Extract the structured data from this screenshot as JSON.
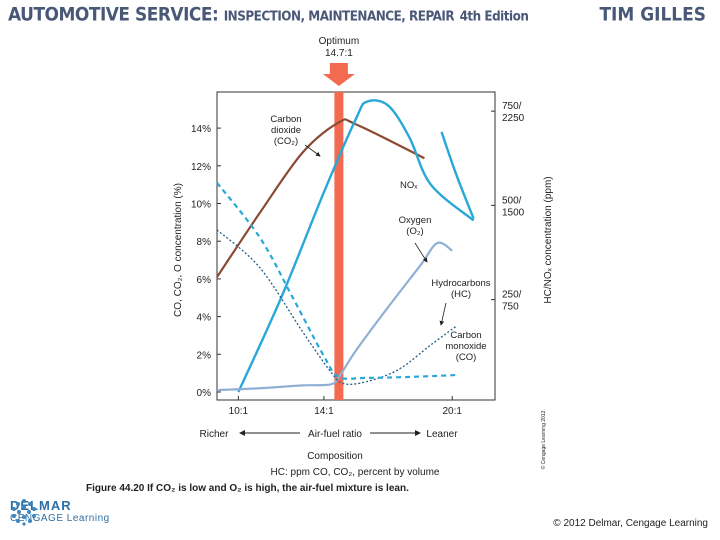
{
  "header": {
    "title_main": "AUTOMOTIVE SERVICE:",
    "title_sub": "INSPECTION, MAINTENANCE, REPAIR",
    "edition": "4th Edition",
    "author": "TIM GILLES"
  },
  "figure": {
    "caption": "Figure 44.20 If CO₂ is low and O₂ is high, the air-fuel mixture is lean.",
    "side_credit": "© Cengage Learning 2012",
    "copyright": "© 2012 Delmar, Cengage Learning",
    "logo_line1": "DELMAR",
    "logo_line2": "CENGAGE Learning"
  },
  "colors": {
    "co2": "#8b4a32",
    "nox": "#29a8d8",
    "o2": "#29a8d8",
    "hc": "#8fb0d4",
    "co": "#1f5f8a",
    "optimum_bar": "#f26a50"
  },
  "chart_data": {
    "type": "line",
    "title": "",
    "optimum_label": "Optimum",
    "optimum_value": "14.7:1",
    "optimum_x": 14.7,
    "xlim": [
      9.0,
      22.0
    ],
    "xticks": [
      10,
      14,
      20
    ],
    "xtick_labels": [
      "10:1",
      "14:1",
      "20:1"
    ],
    "xlabel": "Air-fuel ratio",
    "xlabel_left": "Richer",
    "xlabel_right": "Leaner",
    "composition_title": "Composition",
    "composition_text": "HC: ppm   CO, CO₂, percent by volume",
    "ylabel_left": "CO, CO₂, O concentration (%)",
    "ylim_left": [
      0,
      16
    ],
    "yticks_left": [
      0,
      2,
      4,
      6,
      8,
      10,
      12,
      14
    ],
    "ytick_labels_left": [
      "0%",
      "2%",
      "4%",
      "6%",
      "8%",
      "10%",
      "12%",
      "14%"
    ],
    "ylabel_right": "HC/NOₓ concentration (ppm)",
    "yticks_right": [
      4.9,
      9.9,
      14.9
    ],
    "ytick_labels_right_top": [
      "250/",
      "500/",
      "750/"
    ],
    "ytick_labels_right_bottom": [
      "750",
      "1500",
      "2250"
    ],
    "series": [
      {
        "name": "Carbon dioxide (CO₂)",
        "label_lines": [
          "Carbon",
          "dioxide",
          "(CO₂)"
        ],
        "style": "solid",
        "x": [
          9.0,
          11.0,
          13.0,
          14.7,
          15.5,
          18.7
        ],
        "y": [
          6.1,
          9.5,
          12.7,
          14.3,
          14.2,
          12.4
        ]
      },
      {
        "name": "NOₓ",
        "label_lines": [
          "NOₓ"
        ],
        "style": "solid",
        "x": [
          10.0,
          12.0,
          14.0,
          15.5,
          16.0,
          17.0,
          18.0,
          19.0,
          21.0
        ],
        "y": [
          0.0,
          5.0,
          10.6,
          14.5,
          15.4,
          15.2,
          13.5,
          11.0,
          9.1
        ]
      },
      {
        "name": "Oxygen (O₂)",
        "label_lines": [
          "Oxygen",
          "(O₂)"
        ],
        "style": "solid",
        "x": [
          19.5,
          20.2,
          21.0
        ],
        "y": [
          13.8,
          11.5,
          9.2
        ]
      },
      {
        "name": "Hydrocarbons (HC)",
        "label_lines": [
          "Hydrocarbons",
          "(HC)"
        ],
        "style": "solid",
        "x": [
          9.0,
          11.0,
          13.0,
          14.3,
          14.7,
          15.5,
          17.0,
          18.5,
          19.3,
          20.0
        ],
        "y": [
          0.1,
          0.2,
          0.35,
          0.4,
          0.8,
          2.2,
          4.5,
          6.7,
          7.9,
          7.5
        ]
      },
      {
        "name": "Carbon monoxide (CO)",
        "label_lines": [
          "Carbon",
          "monoxide",
          "(CO)"
        ],
        "style": "dotted",
        "x": [
          9.0,
          11.0,
          13.0,
          14.3,
          14.9,
          16.0,
          17.5,
          19.0,
          20.2
        ],
        "y": [
          8.6,
          6.6,
          3.2,
          1.1,
          0.45,
          0.55,
          1.2,
          2.5,
          3.5
        ]
      },
      {
        "name": "Oxygen (O₂) dashed",
        "label_lines": [],
        "style": "dashed",
        "x": [
          9.0,
          11.0,
          12.5,
          14.0,
          14.7,
          16.0,
          18.0,
          20.2
        ],
        "y": [
          11.1,
          8.2,
          5.1,
          1.9,
          0.8,
          0.75,
          0.8,
          0.9
        ]
      }
    ]
  }
}
